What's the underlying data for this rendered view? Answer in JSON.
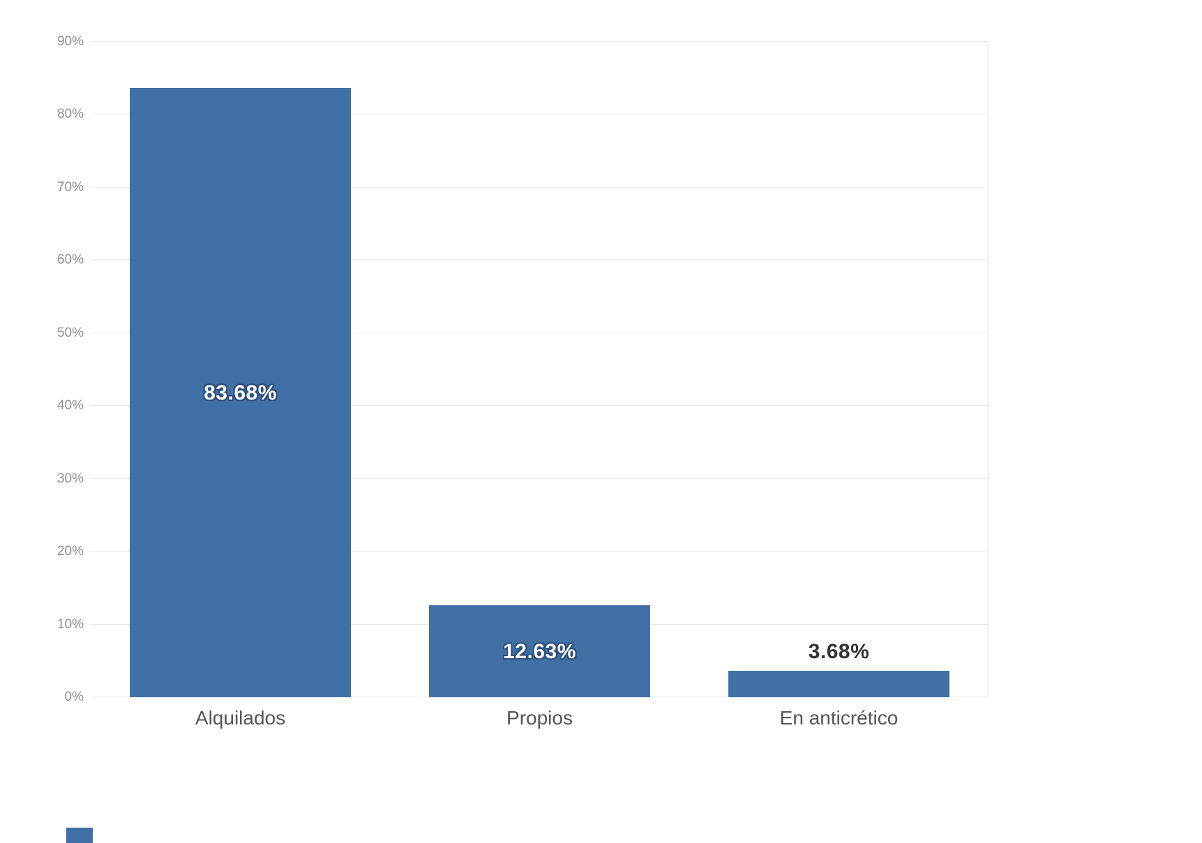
{
  "chart_data": {
    "type": "bar",
    "title": "",
    "xlabel": "",
    "ylabel": "",
    "categories": [
      "Alquilados",
      "Propios",
      "En anticrético"
    ],
    "values": [
      83.68,
      12.63,
      3.68
    ],
    "data_labels": [
      "83.68%",
      "12.63%",
      "3.68%"
    ],
    "ylim": [
      0,
      90
    ],
    "yticks": [
      0,
      10,
      20,
      30,
      40,
      50,
      60,
      70,
      80,
      90
    ],
    "ytick_labels": [
      "0%",
      "10%",
      "20%",
      "30%",
      "40%",
      "50%",
      "60%",
      "70%",
      "80%",
      "90%"
    ],
    "grid": true,
    "legend": false,
    "bar_color": "#4170a6",
    "label_inside_color": "#ffffff",
    "label_outside_color": "#333333",
    "gridline_color": "#e6e6e6"
  },
  "page": {
    "corner_mark_color": "#4170a6"
  }
}
